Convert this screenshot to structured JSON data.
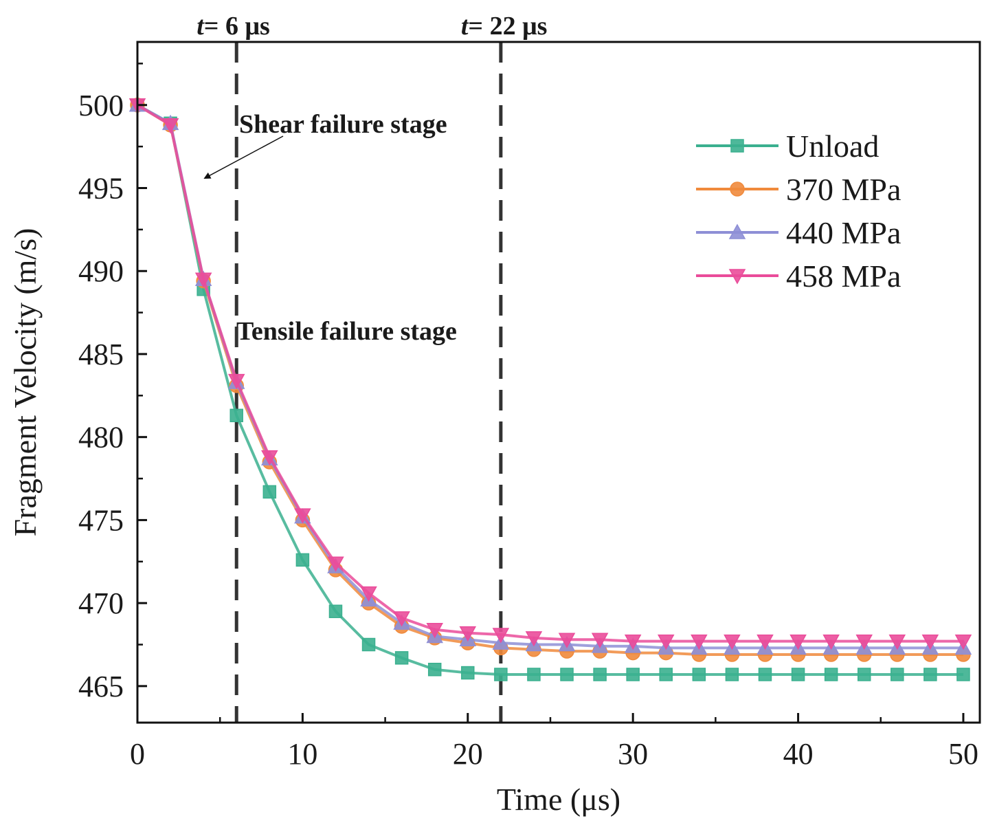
{
  "chart_data": {
    "type": "line",
    "xlabel": "Time (μs)",
    "ylabel": "Fragment Velocity (m/s)",
    "xlim": [
      0,
      51
    ],
    "ylim": [
      462.8,
      503.8
    ],
    "x_ticks": [
      0,
      10,
      20,
      30,
      40,
      50
    ],
    "y_ticks": [
      465,
      470,
      475,
      480,
      485,
      490,
      495,
      500
    ],
    "x_minor_ticks": [
      5,
      15,
      25,
      35,
      45
    ],
    "y_minor_ticks": [
      467.5,
      472.5,
      477.5,
      482.5,
      487.5,
      492.5,
      497.5,
      502.5
    ],
    "x_tick_labels": [
      "0",
      "10",
      "20",
      "30",
      "40",
      "50"
    ],
    "y_tick_labels": [
      "465",
      "470",
      "475",
      "480",
      "485",
      "490",
      "495",
      "500"
    ],
    "grid": false,
    "legend_position": "top-right",
    "x": [
      0,
      2,
      4,
      6,
      8,
      10,
      12,
      14,
      16,
      18,
      20,
      22,
      24,
      26,
      28,
      30,
      32,
      34,
      36,
      38,
      40,
      42,
      44,
      46,
      48,
      50
    ],
    "series": [
      {
        "name": "Unload",
        "color": "#3bb08f",
        "marker": "square",
        "values": [
          500,
          498.9,
          488.9,
          481.3,
          476.7,
          472.6,
          469.5,
          467.5,
          466.7,
          466.0,
          465.8,
          465.7,
          465.7,
          465.7,
          465.7,
          465.7,
          465.7,
          465.7,
          465.7,
          465.7,
          465.7,
          465.7,
          465.7,
          465.7,
          465.7,
          465.7
        ]
      },
      {
        "name": "370 MPa",
        "color": "#f08a3c",
        "marker": "circle",
        "values": [
          500,
          498.8,
          489.4,
          483.1,
          478.5,
          475.0,
          472.0,
          470.0,
          468.6,
          467.9,
          467.6,
          467.3,
          467.2,
          467.1,
          467.1,
          467.0,
          467.0,
          466.9,
          466.9,
          466.9,
          466.9,
          466.9,
          466.9,
          466.9,
          466.9,
          466.9
        ]
      },
      {
        "name": "440 MPa",
        "color": "#8e8fd6",
        "marker": "triangle-up",
        "values": [
          500,
          498.9,
          489.5,
          483.3,
          478.7,
          475.2,
          472.2,
          470.2,
          468.8,
          468.0,
          467.8,
          467.6,
          467.5,
          467.5,
          467.4,
          467.4,
          467.3,
          467.3,
          467.3,
          467.3,
          467.3,
          467.3,
          467.3,
          467.3,
          467.3,
          467.3
        ]
      },
      {
        "name": "458 MPa",
        "color": "#ea4c9a",
        "marker": "triangle-down",
        "values": [
          500,
          498.8,
          489.5,
          483.4,
          478.8,
          475.3,
          472.4,
          470.6,
          469.1,
          468.4,
          468.2,
          468.1,
          467.9,
          467.8,
          467.8,
          467.7,
          467.7,
          467.7,
          467.7,
          467.7,
          467.7,
          467.7,
          467.7,
          467.7,
          467.7,
          467.7
        ]
      }
    ],
    "vertical_lines": [
      {
        "x": 6,
        "label_italic": "t",
        "label_rest": "= 6 μs"
      },
      {
        "x": 22,
        "label_italic": "t",
        "label_rest": "= 22 μs"
      }
    ],
    "annotations": {
      "shear": {
        "text": "Shear failure stage",
        "arrow_to": [
          4,
          495.6
        ]
      },
      "tensile": {
        "text": "Tensile failure stage"
      }
    }
  }
}
